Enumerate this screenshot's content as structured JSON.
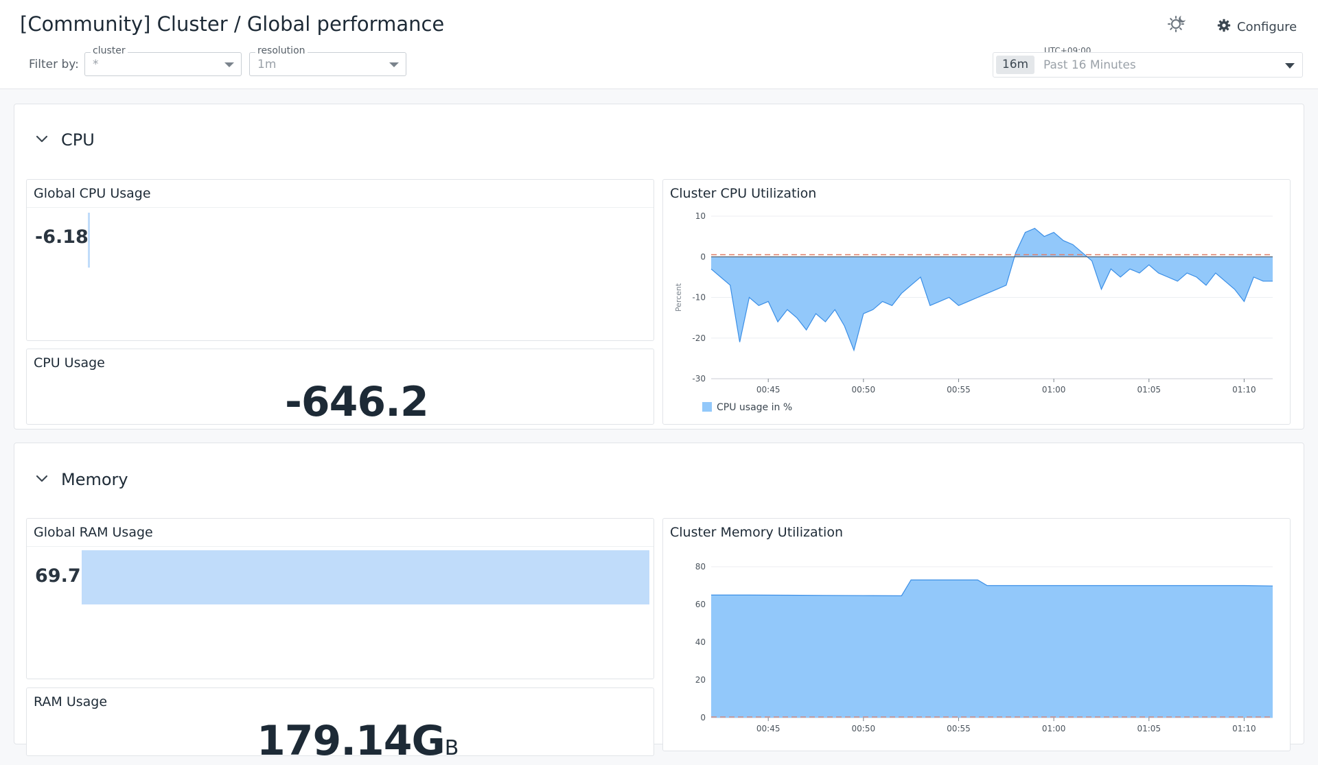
{
  "header": {
    "title": "[Community] Cluster / Global performance",
    "filter_label": "Filter by:",
    "filters": [
      {
        "name": "cluster",
        "value": "*"
      },
      {
        "name": "resolution",
        "value": "1m"
      }
    ],
    "configure_label": "Configure",
    "timezone": "UTC+09:00",
    "time_badge": "16m",
    "time_range": "Past 16 Minutes",
    "icons": {
      "theme": "sun-moon-icon",
      "configure": "gear-icon",
      "collapse": "chevron-down-icon"
    }
  },
  "sections": {
    "cpu": {
      "title": "CPU",
      "global_usage": {
        "title": "Global CPU Usage",
        "value": "-6.18",
        "fill_percent": -6.18
      },
      "usage": {
        "title": "CPU Usage",
        "value": "-646.2"
      },
      "utilization": {
        "title": "Cluster CPU Utilization"
      }
    },
    "memory": {
      "title": "Memory",
      "global_usage": {
        "title": "Global RAM Usage",
        "value": "69.7",
        "fill_percent": 69.7
      },
      "usage": {
        "title": "RAM Usage",
        "value": "179.14G",
        "unit": "B"
      },
      "utilization": {
        "title": "Cluster Memory Utilization"
      }
    }
  },
  "colors": {
    "area": "#92c8fa",
    "line": "#3a8ee6",
    "bar": "#c0dcfa",
    "threshold": "#e0806a"
  },
  "chart_data": [
    {
      "type": "area",
      "title": "Cluster CPU Utilization",
      "ylabel": "Percent",
      "ylim": [
        -30,
        10
      ],
      "yticks": [
        10,
        0,
        -10,
        -20,
        -30
      ],
      "xticks": [
        "00:45",
        "00:50",
        "00:55",
        "01:00",
        "01:05",
        "01:10"
      ],
      "x_range": [
        "00:42",
        "01:11:30"
      ],
      "legend": [
        "CPU usage in %"
      ],
      "legend_position": "bottom-left",
      "grid": true,
      "threshold": 0.5,
      "series": [
        {
          "name": "CPU usage in %",
          "x": [
            "00:42:00",
            "00:42:30",
            "00:43:00",
            "00:43:30",
            "00:44:00",
            "00:44:30",
            "00:45:00",
            "00:45:30",
            "00:46:00",
            "00:46:30",
            "00:47:00",
            "00:47:30",
            "00:48:00",
            "00:48:30",
            "00:49:00",
            "00:49:30",
            "00:50:00",
            "00:50:30",
            "00:51:00",
            "00:51:30",
            "00:52:00",
            "00:52:30",
            "00:53:00",
            "00:53:30",
            "00:54:00",
            "00:54:30",
            "00:55:00",
            "00:55:30",
            "00:56:00",
            "00:56:30",
            "00:57:00",
            "00:57:30",
            "00:58:00",
            "00:58:30",
            "00:59:00",
            "00:59:30",
            "01:00:00",
            "01:00:30",
            "01:01:00",
            "01:01:30",
            "01:02:00",
            "01:02:30",
            "01:03:00",
            "01:03:30",
            "01:04:00",
            "01:04:30",
            "01:05:00",
            "01:05:30",
            "01:06:00",
            "01:06:30",
            "01:07:00",
            "01:07:30",
            "01:08:00",
            "01:08:30",
            "01:09:00",
            "01:09:30",
            "01:10:00",
            "01:10:30",
            "01:11:00",
            "01:11:30"
          ],
          "values": [
            -3,
            -5,
            -7,
            -21,
            -10,
            -12,
            -11,
            -16,
            -13,
            -15,
            -18,
            -14,
            -16,
            -13,
            -17,
            -23,
            -14,
            -13,
            -11,
            -12,
            -9,
            -7,
            -5,
            -12,
            -11,
            -10,
            -12,
            -11,
            -10,
            -9,
            -8,
            -7,
            1,
            6,
            7,
            5,
            6,
            4,
            3,
            1,
            -1,
            -8,
            -3,
            -5,
            -3,
            -4,
            -2,
            -4,
            -5,
            -6,
            -4,
            -5,
            -7,
            -4,
            -6,
            -8,
            -11,
            -5,
            -6,
            -6
          ]
        }
      ]
    },
    {
      "type": "area",
      "title": "Cluster Memory Utilization",
      "ylim": [
        0,
        80
      ],
      "yticks": [
        80,
        60,
        40,
        20,
        0
      ],
      "xticks": [
        "00:45",
        "00:50",
        "00:55",
        "01:00",
        "01:05",
        "01:10"
      ],
      "x_range": [
        "00:42",
        "01:11:30"
      ],
      "grid": true,
      "series": [
        {
          "name": "",
          "x": [
            "00:42:00",
            "00:44:00",
            "00:46:00",
            "00:48:00",
            "00:50:00",
            "00:52:00",
            "00:52:30",
            "00:54:00",
            "00:56:00",
            "00:56:30",
            "00:58:00",
            "01:00:00",
            "01:02:00",
            "01:04:00",
            "01:06:00",
            "01:08:00",
            "01:10:00",
            "01:11:30"
          ],
          "values": [
            65,
            65,
            64.9,
            64.8,
            64.7,
            64.6,
            73,
            73,
            73,
            70,
            70,
            70,
            70,
            70,
            70,
            70,
            70,
            69.8
          ]
        }
      ]
    }
  ]
}
